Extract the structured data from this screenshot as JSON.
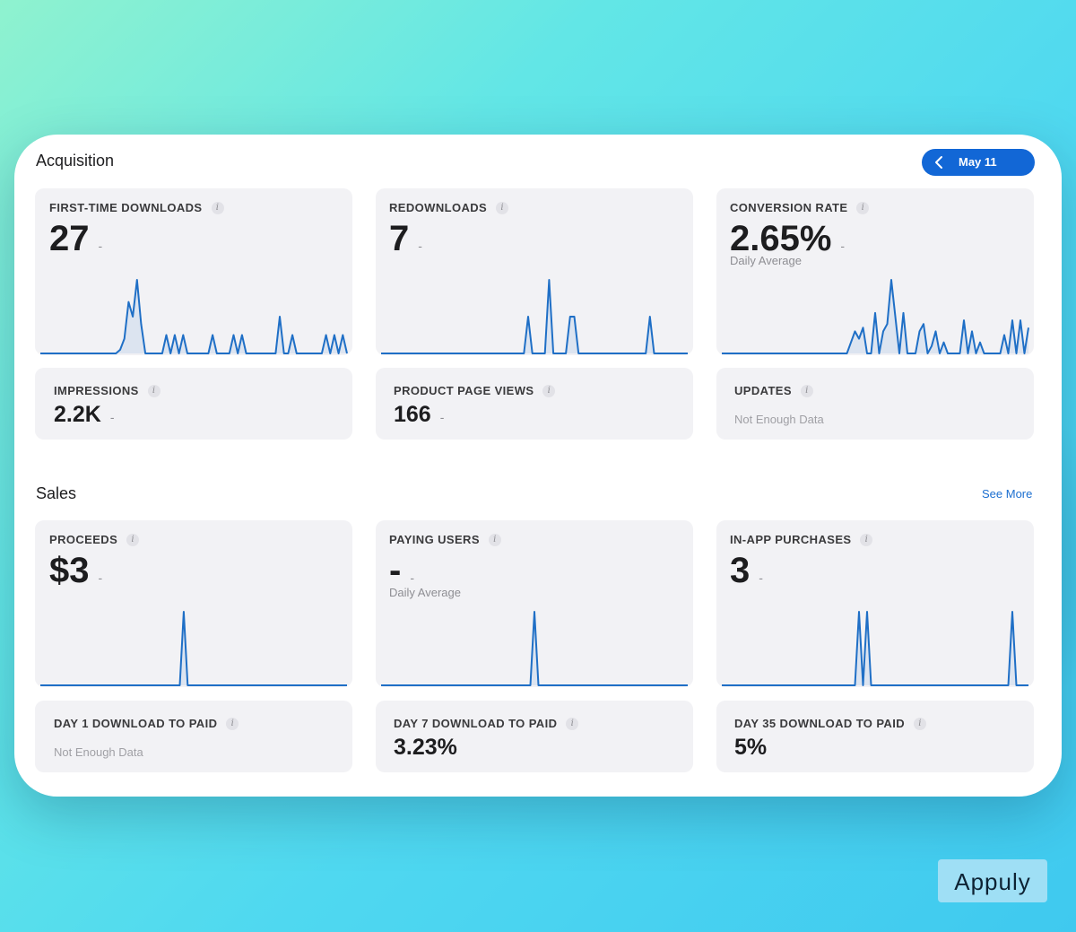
{
  "acquisition": {
    "title": "Acquisition",
    "date_label": "May 11",
    "cards": [
      {
        "title": "FIRST-TIME DOWNLOADS",
        "value": "27",
        "delta": "-",
        "sparkline": [
          0,
          0,
          0,
          0,
          0,
          0,
          0,
          0,
          0,
          0,
          0,
          0,
          0,
          0,
          0,
          0,
          0,
          0,
          0,
          0.05,
          0.2,
          0.7,
          0.5,
          1.0,
          0.4,
          0,
          0,
          0,
          0,
          0,
          0.25,
          0,
          0.25,
          0,
          0.25,
          0,
          0,
          0,
          0,
          0,
          0,
          0.25,
          0,
          0,
          0,
          0,
          0.25,
          0,
          0.25,
          0,
          0,
          0,
          0,
          0,
          0,
          0,
          0,
          0.5,
          0,
          0,
          0.25,
          0,
          0,
          0,
          0,
          0,
          0,
          0,
          0.25,
          0,
          0.25,
          0,
          0.25,
          0
        ]
      },
      {
        "title": "REDOWNLOADS",
        "value": "7",
        "delta": "-",
        "sparkline": [
          0,
          0,
          0,
          0,
          0,
          0,
          0,
          0,
          0,
          0,
          0,
          0,
          0,
          0,
          0,
          0,
          0,
          0,
          0,
          0,
          0,
          0,
          0,
          0,
          0,
          0,
          0,
          0,
          0,
          0,
          0,
          0,
          0,
          0,
          0,
          0.5,
          0,
          0,
          0,
          0,
          1.0,
          0,
          0,
          0,
          0,
          0.5,
          0.5,
          0,
          0,
          0,
          0,
          0,
          0,
          0,
          0,
          0,
          0,
          0,
          0,
          0,
          0,
          0,
          0,
          0,
          0.5,
          0,
          0,
          0,
          0,
          0,
          0,
          0,
          0,
          0
        ]
      },
      {
        "title": "CONVERSION RATE",
        "value": "2.65%",
        "delta": "-",
        "sub": "Daily Average",
        "sparkline": [
          0,
          0,
          0,
          0,
          0,
          0,
          0,
          0,
          0,
          0,
          0,
          0,
          0,
          0,
          0,
          0,
          0,
          0,
          0,
          0,
          0,
          0,
          0,
          0,
          0,
          0,
          0,
          0,
          0,
          0,
          0,
          0,
          0.15,
          0.3,
          0.2,
          0.35,
          0,
          0,
          0.55,
          0,
          0.3,
          0.4,
          1.0,
          0.5,
          0,
          0.55,
          0,
          0,
          0,
          0.3,
          0.4,
          0,
          0.1,
          0.3,
          0,
          0.15,
          0,
          0,
          0,
          0,
          0.45,
          0,
          0.3,
          0,
          0.15,
          0,
          0,
          0,
          0,
          0,
          0.25,
          0,
          0.45,
          0,
          0.45,
          0,
          0.35
        ]
      }
    ],
    "small_cards": [
      {
        "title": "IMPRESSIONS",
        "value": "2.2K",
        "delta": "-"
      },
      {
        "title": "PRODUCT PAGE VIEWS",
        "value": "166",
        "delta": "-"
      },
      {
        "title": "UPDATES",
        "nodata": "Not Enough Data"
      }
    ]
  },
  "sales": {
    "title": "Sales",
    "see_more": "See More",
    "cards": [
      {
        "title": "PROCEEDS",
        "value": "$3",
        "delta": "-",
        "sparkline": [
          0,
          0,
          0,
          0,
          0,
          0,
          0,
          0,
          0,
          0,
          0,
          0,
          0,
          0,
          0,
          0,
          0,
          0,
          0,
          0,
          0,
          0,
          0,
          0,
          0,
          0,
          0,
          0,
          0,
          0,
          0,
          0,
          0,
          0,
          0,
          0,
          1.0,
          0,
          0,
          0,
          0,
          0,
          0,
          0,
          0,
          0,
          0,
          0,
          0,
          0,
          0,
          0,
          0,
          0,
          0,
          0,
          0,
          0,
          0,
          0,
          0,
          0,
          0,
          0,
          0,
          0,
          0,
          0,
          0,
          0,
          0,
          0,
          0,
          0,
          0,
          0,
          0,
          0
        ]
      },
      {
        "title": "PAYING USERS",
        "value": "-",
        "delta": "-",
        "sub": "Daily Average",
        "sparkline": [
          0,
          0,
          0,
          0,
          0,
          0,
          0,
          0,
          0,
          0,
          0,
          0,
          0,
          0,
          0,
          0,
          0,
          0,
          0,
          0,
          0,
          0,
          0,
          0,
          0,
          0,
          0,
          0,
          0,
          0,
          0,
          0,
          0,
          0,
          0,
          0,
          0,
          0,
          1.0,
          0,
          0,
          0,
          0,
          0,
          0,
          0,
          0,
          0,
          0,
          0,
          0,
          0,
          0,
          0,
          0,
          0,
          0,
          0,
          0,
          0,
          0,
          0,
          0,
          0,
          0,
          0,
          0,
          0,
          0,
          0,
          0,
          0,
          0,
          0,
          0,
          0,
          0
        ]
      },
      {
        "title": "IN-APP PURCHASES",
        "value": "3",
        "delta": "-",
        "sparkline": [
          0,
          0,
          0,
          0,
          0,
          0,
          0,
          0,
          0,
          0,
          0,
          0,
          0,
          0,
          0,
          0,
          0,
          0,
          0,
          0,
          0,
          0,
          0,
          0,
          0,
          0,
          0,
          0,
          0,
          0,
          0,
          0,
          0,
          0,
          1.0,
          0,
          1.0,
          0,
          0,
          0,
          0,
          0,
          0,
          0,
          0,
          0,
          0,
          0,
          0,
          0,
          0,
          0,
          0,
          0,
          0,
          0,
          0,
          0,
          0,
          0,
          0,
          0,
          0,
          0,
          0,
          0,
          0,
          0,
          0,
          0,
          0,
          0,
          1.0,
          0,
          0,
          0,
          0
        ]
      }
    ],
    "small_cards": [
      {
        "title": "DAY 1 DOWNLOAD TO PAID",
        "nodata": "Not Enough Data"
      },
      {
        "title": "DAY 7 DOWNLOAD TO PAID",
        "value": "3.23%"
      },
      {
        "title": "DAY 35 DOWNLOAD TO PAID",
        "value": "5%"
      }
    ]
  },
  "watermark": "Appuly",
  "colors": {
    "accent": "#1267d6",
    "sparkline": "#1f6fc6",
    "card_bg": "#f2f2f5"
  }
}
